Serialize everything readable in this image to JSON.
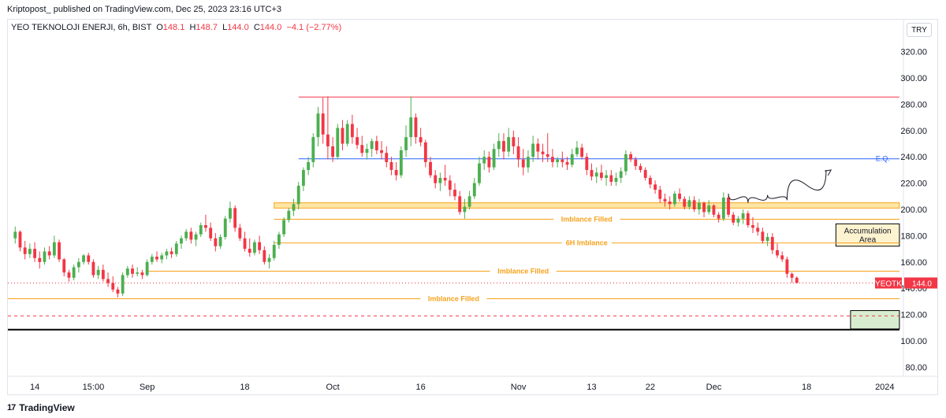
{
  "header": {
    "publish_line": "Kriptopost_  published on TradingView.com, Dec 25, 2023 23:16 UTC+3"
  },
  "legend": {
    "symbol_line": "YEO TEKNOLOJI ENERJI, 6h, BIST",
    "open_label": "O",
    "open": "148.1",
    "high_label": "H",
    "high": "148.7",
    "low_label": "L",
    "low": "144.0",
    "close_label": "C",
    "close": "144.0",
    "change": "−4.1 (−2.77%)"
  },
  "currency_button": "TRY",
  "footer": {
    "brand": "TradingView",
    "logo_mark": "17"
  },
  "colors": {
    "up": "#4caf50",
    "down": "#f23645",
    "orange": "#f7a21b",
    "eq_line": "#2962ff",
    "top_line": "#f23645",
    "zone_fill": "#fde6a6",
    "target_fill": "#d8edd0"
  },
  "chart_data": {
    "type": "candlestick",
    "title": "YEO TEKNOLOJI ENERJI, 6h, BIST",
    "ylim": [
      73,
      333
    ],
    "y_ticks": [
      80,
      100,
      120,
      140,
      160,
      180,
      200,
      220,
      240,
      260,
      280,
      300,
      320
    ],
    "y_tick_labels": [
      "80.00",
      "100.00",
      "120.00",
      "140.00",
      "160.00",
      "180.00",
      "200.00",
      "220.00",
      "240.00",
      "260.00",
      "280.00",
      "300.00",
      "320.00"
    ],
    "x_ticks": [
      {
        "i": 4,
        "label": "14"
      },
      {
        "i": 16,
        "label": "15:00"
      },
      {
        "i": 27,
        "label": "Sep"
      },
      {
        "i": 47,
        "label": "18"
      },
      {
        "i": 65,
        "label": "Oct"
      },
      {
        "i": 83,
        "label": "16"
      },
      {
        "i": 103,
        "label": "Nov"
      },
      {
        "i": 118,
        "label": "13"
      },
      {
        "i": 130,
        "label": "22"
      },
      {
        "i": 143,
        "label": "Dec"
      },
      {
        "i": 162,
        "label": "18"
      },
      {
        "i": 178,
        "label": "2024"
      }
    ],
    "x_range": [
      -1.5,
      181.5
    ],
    "ohlc": [
      [
        178,
        187,
        174,
        183
      ],
      [
        183,
        184,
        168,
        171
      ],
      [
        171,
        176,
        162,
        166
      ],
      [
        166,
        174,
        163,
        170
      ],
      [
        170,
        175,
        160,
        163
      ],
      [
        163,
        168,
        155,
        160
      ],
      [
        160,
        171,
        158,
        168
      ],
      [
        168,
        172,
        162,
        165
      ],
      [
        165,
        180,
        163,
        175
      ],
      [
        175,
        177,
        160,
        162
      ],
      [
        162,
        163,
        149,
        152
      ],
      [
        152,
        154,
        145,
        148
      ],
      [
        148,
        158,
        146,
        156
      ],
      [
        156,
        163,
        152,
        160
      ],
      [
        160,
        166,
        158,
        165
      ],
      [
        165,
        167,
        158,
        160
      ],
      [
        160,
        162,
        148,
        150
      ],
      [
        150,
        157,
        147,
        154
      ],
      [
        154,
        158,
        145,
        147
      ],
      [
        147,
        152,
        141,
        144
      ],
      [
        144,
        149,
        137,
        139
      ],
      [
        139,
        141,
        133,
        136
      ],
      [
        136,
        152,
        134,
        150
      ],
      [
        150,
        157,
        148,
        155
      ],
      [
        155,
        158,
        148,
        151
      ],
      [
        151,
        156,
        149,
        152
      ],
      [
        152,
        154,
        147,
        150
      ],
      [
        150,
        162,
        149,
        160
      ],
      [
        160,
        166,
        158,
        164
      ],
      [
        164,
        168,
        160,
        162
      ],
      [
        162,
        167,
        159,
        165
      ],
      [
        165,
        170,
        162,
        168
      ],
      [
        168,
        171,
        163,
        166
      ],
      [
        166,
        176,
        164,
        174
      ],
      [
        174,
        180,
        170,
        178
      ],
      [
        178,
        185,
        176,
        183
      ],
      [
        183,
        186,
        174,
        177
      ],
      [
        177,
        183,
        172,
        181
      ],
      [
        181,
        190,
        179,
        188
      ],
      [
        188,
        196,
        183,
        186
      ],
      [
        186,
        190,
        176,
        178
      ],
      [
        178,
        182,
        168,
        172
      ],
      [
        172,
        181,
        170,
        179
      ],
      [
        179,
        195,
        177,
        193
      ],
      [
        193,
        206,
        190,
        201
      ],
      [
        201,
        203,
        183,
        186
      ],
      [
        186,
        189,
        176,
        178
      ],
      [
        178,
        183,
        168,
        170
      ],
      [
        170,
        178,
        164,
        167
      ],
      [
        167,
        177,
        165,
        175
      ],
      [
        175,
        180,
        166,
        169
      ],
      [
        169,
        172,
        158,
        160
      ],
      [
        160,
        166,
        155,
        163
      ],
      [
        163,
        176,
        161,
        173
      ],
      [
        173,
        183,
        170,
        181
      ],
      [
        181,
        194,
        179,
        192
      ],
      [
        192,
        201,
        190,
        199
      ],
      [
        199,
        208,
        195,
        204
      ],
      [
        204,
        221,
        200,
        218
      ],
      [
        218,
        232,
        214,
        230
      ],
      [
        230,
        240,
        226,
        236
      ],
      [
        236,
        258,
        232,
        255
      ],
      [
        255,
        278,
        248,
        273
      ],
      [
        273,
        285,
        250,
        257
      ],
      [
        257,
        286,
        238,
        248
      ],
      [
        248,
        255,
        236,
        240
      ],
      [
        240,
        265,
        238,
        262
      ],
      [
        262,
        268,
        245,
        250
      ],
      [
        250,
        268,
        248,
        265
      ],
      [
        265,
        272,
        250,
        255
      ],
      [
        255,
        262,
        246,
        249
      ],
      [
        249,
        256,
        240,
        243
      ],
      [
        243,
        250,
        238,
        246
      ],
      [
        246,
        254,
        240,
        252
      ],
      [
        252,
        256,
        242,
        245
      ],
      [
        245,
        252,
        238,
        243
      ],
      [
        243,
        248,
        232,
        236
      ],
      [
        236,
        240,
        226,
        230
      ],
      [
        230,
        236,
        222,
        226
      ],
      [
        226,
        248,
        224,
        245
      ],
      [
        245,
        264,
        240,
        255
      ],
      [
        255,
        286,
        248,
        270
      ],
      [
        270,
        273,
        250,
        255
      ],
      [
        255,
        262,
        248,
        251
      ],
      [
        251,
        253,
        232,
        236
      ],
      [
        236,
        240,
        224,
        226
      ],
      [
        226,
        230,
        216,
        220
      ],
      [
        220,
        228,
        214,
        224
      ],
      [
        224,
        234,
        218,
        222
      ],
      [
        222,
        226,
        210,
        215
      ],
      [
        215,
        220,
        207,
        210
      ],
      [
        210,
        214,
        196,
        198
      ],
      [
        198,
        208,
        193,
        202
      ],
      [
        202,
        214,
        200,
        210
      ],
      [
        210,
        224,
        208,
        220
      ],
      [
        220,
        240,
        218,
        235
      ],
      [
        235,
        245,
        230,
        240
      ],
      [
        240,
        244,
        228,
        232
      ],
      [
        232,
        250,
        230,
        246
      ],
      [
        246,
        258,
        240,
        252
      ],
      [
        252,
        258,
        238,
        244
      ],
      [
        244,
        262,
        240,
        255
      ],
      [
        255,
        260,
        242,
        248
      ],
      [
        248,
        255,
        232,
        238
      ],
      [
        238,
        246,
        226,
        232
      ],
      [
        232,
        245,
        228,
        240
      ],
      [
        240,
        256,
        236,
        250
      ],
      [
        250,
        254,
        238,
        244
      ],
      [
        244,
        250,
        236,
        242
      ],
      [
        242,
        258,
        236,
        240
      ],
      [
        240,
        246,
        232,
        236
      ],
      [
        236,
        240,
        232,
        238
      ],
      [
        238,
        244,
        232,
        236
      ],
      [
        236,
        240,
        230,
        234
      ],
      [
        234,
        246,
        232,
        242
      ],
      [
        242,
        252,
        240,
        247
      ],
      [
        247,
        250,
        238,
        240
      ],
      [
        240,
        243,
        226,
        230
      ],
      [
        230,
        235,
        222,
        225
      ],
      [
        225,
        232,
        220,
        228
      ],
      [
        228,
        234,
        222,
        224
      ],
      [
        224,
        230,
        218,
        226
      ],
      [
        226,
        230,
        218,
        221
      ],
      [
        221,
        228,
        218,
        224
      ],
      [
        224,
        232,
        220,
        229
      ],
      [
        229,
        245,
        226,
        242
      ],
      [
        242,
        244,
        236,
        238
      ],
      [
        238,
        240,
        230,
        233
      ],
      [
        233,
        235,
        228,
        230
      ],
      [
        230,
        232,
        222,
        224
      ],
      [
        224,
        226,
        216,
        219
      ],
      [
        219,
        222,
        212,
        215
      ],
      [
        215,
        218,
        205,
        208
      ],
      [
        208,
        212,
        202,
        206
      ],
      [
        206,
        210,
        200,
        204
      ],
      [
        204,
        214,
        202,
        212
      ],
      [
        212,
        216,
        206,
        208
      ],
      [
        208,
        210,
        200,
        202
      ],
      [
        202,
        210,
        200,
        207
      ],
      [
        207,
        210,
        198,
        200
      ],
      [
        200,
        208,
        196,
        205
      ],
      [
        205,
        206,
        194,
        198
      ],
      [
        198,
        207,
        196,
        203
      ],
      [
        203,
        204,
        194,
        196
      ],
      [
        196,
        198,
        190,
        193
      ],
      [
        193,
        213,
        191,
        209
      ],
      [
        209,
        212,
        194,
        196
      ],
      [
        196,
        198,
        188,
        190
      ],
      [
        190,
        195,
        187,
        193
      ],
      [
        193,
        200,
        189,
        197
      ],
      [
        197,
        199,
        186,
        188
      ],
      [
        188,
        194,
        182,
        186
      ],
      [
        186,
        190,
        180,
        183
      ],
      [
        183,
        186,
        174,
        176
      ],
      [
        176,
        182,
        172,
        179
      ],
      [
        179,
        182,
        166,
        169
      ],
      [
        169,
        174,
        163,
        165
      ],
      [
        165,
        168,
        160,
        162
      ],
      [
        162,
        164,
        148,
        151
      ],
      [
        151,
        152,
        144,
        148
      ],
      [
        148,
        149,
        144,
        144
      ]
    ],
    "ohlc_order": [
      "open",
      "high",
      "low",
      "close"
    ],
    "levels": [
      {
        "price": 285.5,
        "label": "",
        "color": "#f23645",
        "style": "solid",
        "from_i": 58,
        "to_i": 181
      },
      {
        "price": 238.5,
        "label": "E.Q.",
        "color": "#2962ff",
        "style": "solid",
        "from_i": 58,
        "to_i": 181
      },
      {
        "price": 192.5,
        "label": "Imblance Filled",
        "color": "#f7a21b",
        "style": "solid",
        "from_i": 53,
        "to_i": 181
      },
      {
        "price": 174.5,
        "label": "6H Imblance",
        "color": "#f7a21b",
        "style": "solid",
        "from_i": 53,
        "to_i": 181
      },
      {
        "price": 153.0,
        "label": "Imblance Filled",
        "color": "#f7a21b",
        "style": "solid",
        "from_i": 27,
        "to_i": 181
      },
      {
        "price": 132.0,
        "label": "Imblance Filled",
        "color": "#f7a21b",
        "style": "solid",
        "from_i": -1.5,
        "to_i": 181
      },
      {
        "price": 119.0,
        "label": "",
        "color": "#f23645",
        "style": "dashed",
        "from_i": -1.5,
        "to_i": 181
      },
      {
        "price": 108.5,
        "label": "",
        "color": "#000000",
        "style": "solid-thick",
        "from_i": -1.5,
        "to_i": 181
      }
    ],
    "zones": [
      {
        "label": "",
        "price_top": 205,
        "price_bottom": 201,
        "from_i": 53,
        "to_i": 181,
        "fill": "#fde6a6",
        "stroke": "#f7a21b"
      },
      {
        "label": "Accumulation Area",
        "price_top": 189,
        "price_bottom": 172,
        "from_i": 168,
        "to_i": 181,
        "fill": "#fef3d0",
        "stroke": "#000000"
      },
      {
        "label": "",
        "price_top": 123,
        "price_bottom": 109,
        "from_i": 171,
        "to_i": 181,
        "fill": "#d8edd0",
        "stroke": "#000000"
      }
    ],
    "annotations": [
      {
        "type": "curve",
        "points": [
          [
            146,
            212
          ],
          [
            150,
            205
          ],
          [
            154,
            211
          ],
          [
            158,
            207
          ],
          [
            166,
            230
          ]
        ]
      },
      {
        "type": "arrow",
        "points": [
          [
            159,
            209
          ],
          [
            167,
            230
          ]
        ]
      }
    ],
    "last_price": {
      "symbol": "YEOTK",
      "value": "144.0"
    }
  }
}
